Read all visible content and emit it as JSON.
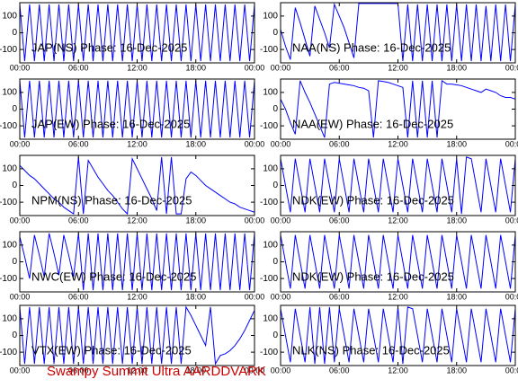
{
  "caption": "Swampy Summit Ultra AARDDVARK",
  "chart_data": [
    {
      "type": "line",
      "title": "JAP(NS) Phase: 16-Dec-2025",
      "color": "#0000ff",
      "xlim": [
        0,
        24
      ],
      "ylim": [
        -180,
        180
      ],
      "xticks": [
        {
          "value": 0,
          "label": "00:00"
        },
        {
          "value": 6,
          "label": "06:00"
        },
        {
          "value": 12,
          "label": "12:00"
        },
        {
          "value": 18,
          "label": "18:00"
        },
        {
          "value": 24,
          "label": "00:00"
        }
      ],
      "yticks": [
        -100,
        0,
        100
      ],
      "x": [
        0,
        0.5,
        1,
        1.5,
        2,
        2.5,
        3,
        3.5,
        4,
        4.5,
        5,
        5.5,
        6,
        6.5,
        7,
        7.5,
        8,
        8.5,
        9,
        9.5,
        10,
        10.5,
        11,
        11.5,
        12,
        12.5,
        13,
        13.5,
        14,
        14.5,
        15,
        15.5,
        16,
        16.5,
        17,
        17.5,
        18,
        18.5,
        19,
        19.5,
        20,
        20.5,
        21,
        21.5,
        22,
        22.5,
        23,
        23.5,
        24
      ],
      "values": [
        170,
        -170,
        170,
        -170,
        170,
        -170,
        170,
        -170,
        170,
        -170,
        170,
        -170,
        170,
        -170,
        170,
        -170,
        170,
        -170,
        170,
        -170,
        170,
        -170,
        170,
        -170,
        170,
        -170,
        170,
        -170,
        170,
        -170,
        170,
        -170,
        170,
        -170,
        170,
        -170,
        170,
        -170,
        170,
        -170,
        170,
        -170,
        170,
        -170,
        170,
        -170,
        170,
        -170,
        170
      ]
    },
    {
      "type": "line",
      "title": "NAA(NS) Phase: 16-Dec-2025",
      "color": "#0000ff",
      "xlim": [
        0,
        24
      ],
      "ylim": [
        -180,
        180
      ],
      "xticks": [
        {
          "value": 0,
          "label": "00:00"
        },
        {
          "value": 6,
          "label": "06:00"
        },
        {
          "value": 12,
          "label": "12:00"
        },
        {
          "value": 18,
          "label": "18:00"
        },
        {
          "value": 24,
          "label": "00:00"
        }
      ],
      "yticks": [
        -100,
        0,
        100
      ],
      "x": [
        0,
        0.5,
        1,
        1.5,
        2,
        2.5,
        3,
        3.5,
        4,
        4.5,
        5,
        5.5,
        6,
        6.5,
        7,
        7.5,
        8,
        8.5,
        9,
        9.5,
        10,
        10.5,
        11,
        11.5,
        12,
        12.5,
        13,
        13.5,
        14,
        14.5,
        15,
        15.5,
        16,
        16.5,
        17,
        17.5,
        18,
        18.5,
        19,
        19.5,
        20,
        20.5,
        21,
        21.5,
        22,
        22.5,
        23,
        23.5,
        24
      ],
      "values": [
        20,
        -80,
        -160,
        150,
        60,
        -40,
        -140,
        160,
        80,
        0,
        -90,
        170,
        100,
        30,
        -60,
        -150,
        175,
        175,
        175,
        175,
        175,
        175,
        175,
        175,
        175,
        -170,
        170,
        -170,
        170,
        -170,
        170,
        -170,
        170,
        -170,
        170,
        -170,
        170,
        -170,
        170,
        -170,
        170,
        -170,
        160,
        -170,
        170,
        -170,
        170,
        -170,
        170
      ]
    },
    {
      "type": "line",
      "title": "JAP(EW) Phase: 16-Dec-2025",
      "color": "#0000ff",
      "xlim": [
        0,
        24
      ],
      "ylim": [
        -180,
        180
      ],
      "xticks": [
        {
          "value": 0,
          "label": "00:00"
        },
        {
          "value": 6,
          "label": "06:00"
        },
        {
          "value": 12,
          "label": "12:00"
        },
        {
          "value": 18,
          "label": "18:00"
        },
        {
          "value": 24,
          "label": "00:00"
        }
      ],
      "yticks": [
        -100,
        0,
        100
      ],
      "x": [
        0,
        0.5,
        1,
        1.5,
        2,
        2.5,
        3,
        3.5,
        4,
        4.5,
        5,
        5.5,
        6,
        6.5,
        7,
        7.5,
        8,
        8.5,
        9,
        9.5,
        10,
        10.5,
        11,
        11.5,
        12,
        12.5,
        13,
        13.5,
        14,
        14.5,
        15,
        15.5,
        16,
        16.5,
        17,
        17.5,
        18,
        18.5,
        19,
        19.5,
        20,
        20.5,
        21,
        21.5,
        22,
        22.5,
        23,
        23.5,
        24
      ],
      "values": [
        170,
        -170,
        170,
        -170,
        170,
        -170,
        170,
        -170,
        170,
        -170,
        170,
        -170,
        170,
        -170,
        170,
        -170,
        170,
        -170,
        170,
        -170,
        170,
        -170,
        170,
        -170,
        170,
        -170,
        170,
        -170,
        170,
        -170,
        170,
        -170,
        170,
        -170,
        170,
        -170,
        170,
        -170,
        170,
        -170,
        170,
        -170,
        170,
        -170,
        170,
        -170,
        170,
        -170,
        170
      ]
    },
    {
      "type": "line",
      "title": "NAA(EW) Phase: 16-Dec-2025",
      "color": "#0000ff",
      "xlim": [
        0,
        24
      ],
      "ylim": [
        -180,
        180
      ],
      "xticks": [
        {
          "value": 0,
          "label": "00:00"
        },
        {
          "value": 6,
          "label": "06:00"
        },
        {
          "value": 12,
          "label": "12:00"
        },
        {
          "value": 18,
          "label": "18:00"
        },
        {
          "value": 24,
          "label": "00:00"
        }
      ],
      "yticks": [
        -100,
        0,
        100
      ],
      "x": [
        0,
        0.5,
        1,
        1.5,
        2,
        2.5,
        3,
        3.5,
        4,
        4.5,
        5,
        5.5,
        6,
        6.5,
        7,
        7.5,
        8,
        8.5,
        9,
        9.5,
        10,
        10.5,
        11,
        11.5,
        12,
        12.5,
        13,
        13.5,
        14,
        14.5,
        15,
        15.5,
        16,
        16.5,
        17,
        17.5,
        18,
        18.5,
        19,
        19.5,
        20,
        20.5,
        21,
        21.5,
        22,
        22.5,
        23,
        23.5,
        24
      ],
      "values": [
        60,
        0,
        -80,
        -150,
        170,
        100,
        40,
        -30,
        -100,
        -170,
        150,
        160,
        155,
        150,
        145,
        140,
        130,
        125,
        110,
        -170,
        170,
        165,
        160,
        150,
        140,
        130,
        -170,
        170,
        -170,
        170,
        -170,
        170,
        -170,
        170,
        150,
        150,
        145,
        140,
        130,
        120,
        110,
        100,
        120,
        110,
        100,
        80,
        70,
        70,
        60
      ]
    },
    {
      "type": "line",
      "title": "NPM(NS) Phase: 16-Dec-2025",
      "color": "#0000ff",
      "xlim": [
        0,
        24
      ],
      "ylim": [
        -180,
        180
      ],
      "xticks": [
        {
          "value": 0,
          "label": "00:00"
        },
        {
          "value": 6,
          "label": "06:00"
        },
        {
          "value": 12,
          "label": "12:00"
        },
        {
          "value": 18,
          "label": "18:00"
        },
        {
          "value": 24,
          "label": "00:00"
        }
      ],
      "yticks": [
        -100,
        0,
        100
      ],
      "x": [
        0,
        0.5,
        1,
        1.5,
        2,
        2.5,
        3,
        3.5,
        4,
        4.5,
        5,
        5.5,
        6,
        6.5,
        7,
        7.5,
        8,
        8.5,
        9,
        9.5,
        10,
        10.5,
        11,
        11.5,
        12,
        12.5,
        13,
        13.5,
        14,
        14.5,
        15,
        15.5,
        16,
        16.5,
        17,
        17.5,
        18,
        18.5,
        19,
        19.5,
        20,
        20.5,
        21,
        21.5,
        22,
        22.5,
        23,
        23.5,
        24
      ],
      "values": [
        120,
        90,
        60,
        40,
        10,
        -20,
        -50,
        -80,
        -100,
        -130,
        -150,
        -170,
        170,
        -170,
        150,
        100,
        50,
        10,
        -30,
        -60,
        -100,
        -140,
        -170,
        160,
        100,
        40,
        -20,
        -80,
        -150,
        170,
        -170,
        170,
        -170,
        -170,
        40,
        80,
        60,
        30,
        0,
        -20,
        -40,
        -60,
        -80,
        -100,
        -110,
        -130,
        -140,
        -150,
        -160
      ]
    },
    {
      "type": "line",
      "title": "NDK(EW) Phase: 16-Dec-2025",
      "color": "#0000ff",
      "xlim": [
        0,
        24
      ],
      "ylim": [
        -180,
        180
      ],
      "xticks": [
        {
          "value": 0,
          "label": "00:00"
        },
        {
          "value": 6,
          "label": "06:00"
        },
        {
          "value": 12,
          "label": "12:00"
        },
        {
          "value": 18,
          "label": "18:00"
        },
        {
          "value": 24,
          "label": "00:00"
        }
      ],
      "yticks": [
        -100,
        0,
        100
      ],
      "x": [
        0,
        0.5,
        1,
        1.5,
        2,
        2.5,
        3,
        3.5,
        4,
        4.5,
        5,
        5.5,
        6,
        6.5,
        7,
        7.5,
        8,
        8.5,
        9,
        9.5,
        10,
        10.5,
        11,
        11.5,
        12,
        12.5,
        13,
        13.5,
        14,
        14.5,
        15,
        15.5,
        16,
        16.5,
        17,
        17.5,
        18,
        18.5,
        19,
        19.5,
        20,
        20.5,
        21,
        21.5,
        22,
        22.5,
        23,
        23.5,
        24
      ],
      "values": [
        160,
        0,
        -160,
        160,
        0,
        -160,
        160,
        0,
        -160,
        160,
        0,
        -160,
        160,
        0,
        -160,
        160,
        0,
        -160,
        160,
        0,
        -160,
        160,
        0,
        -160,
        160,
        0,
        -160,
        160,
        0,
        -160,
        160,
        0,
        -160,
        160,
        0,
        -160,
        160,
        -170,
        170,
        160,
        0,
        -160,
        160,
        0,
        -160,
        160,
        0,
        -160,
        160
      ]
    },
    {
      "type": "line",
      "title": "NWC(EW) Phase: 16-Dec-2025",
      "color": "#0000ff",
      "xlim": [
        0,
        24
      ],
      "ylim": [
        -180,
        180
      ],
      "xticks": [
        {
          "value": 0,
          "label": "00:00"
        },
        {
          "value": 6,
          "label": "06:00"
        },
        {
          "value": 12,
          "label": "12:00"
        },
        {
          "value": 18,
          "label": "18:00"
        },
        {
          "value": 24,
          "label": "00:00"
        }
      ],
      "yticks": [
        -100,
        0,
        100
      ],
      "x": [
        0,
        0.5,
        1,
        1.5,
        2,
        2.5,
        3,
        3.5,
        4,
        4.5,
        5,
        5.5,
        6,
        6.5,
        7,
        7.5,
        8,
        8.5,
        9,
        9.5,
        10,
        10.5,
        11,
        11.5,
        12,
        12.5,
        13,
        13.5,
        14,
        14.5,
        15,
        15.5,
        16,
        16.5,
        17,
        17.5,
        18,
        18.5,
        19,
        19.5,
        20,
        20.5,
        21,
        21.5,
        22,
        22.5,
        23,
        23.5,
        24
      ],
      "values": [
        150,
        30,
        -100,
        160,
        40,
        -90,
        170,
        50,
        -80,
        160,
        40,
        -90,
        170,
        -170,
        170,
        -170,
        170,
        -170,
        170,
        -170,
        170,
        -170,
        170,
        -170,
        170,
        -170,
        170,
        -170,
        170,
        -170,
        170,
        -170,
        170,
        -170,
        170,
        -170,
        170,
        -170,
        170,
        -170,
        170,
        -170,
        170,
        -170,
        170,
        -170,
        170,
        -170,
        170
      ]
    },
    {
      "type": "line",
      "title": "NDK(EW) Phase: 16-Dec-2025",
      "color": "#0000ff",
      "xlim": [
        0,
        24
      ],
      "ylim": [
        -180,
        180
      ],
      "xticks": [
        {
          "value": 0,
          "label": "00:00"
        },
        {
          "value": 6,
          "label": "06:00"
        },
        {
          "value": 12,
          "label": "12:00"
        },
        {
          "value": 18,
          "label": "18:00"
        },
        {
          "value": 24,
          "label": "00:00"
        }
      ],
      "yticks": [
        -100,
        0,
        100
      ],
      "x": [
        0,
        0.5,
        1,
        1.5,
        2,
        2.5,
        3,
        3.5,
        4,
        4.5,
        5,
        5.5,
        6,
        6.5,
        7,
        7.5,
        8,
        8.5,
        9,
        9.5,
        10,
        10.5,
        11,
        11.5,
        12,
        12.5,
        13,
        13.5,
        14,
        14.5,
        15,
        15.5,
        16,
        16.5,
        17,
        17.5,
        18,
        18.5,
        19,
        19.5,
        20,
        20.5,
        21,
        21.5,
        22,
        22.5,
        23,
        23.5,
        24
      ],
      "values": [
        160,
        0,
        -160,
        160,
        0,
        -160,
        160,
        0,
        -160,
        160,
        0,
        -160,
        160,
        0,
        -160,
        160,
        0,
        -160,
        160,
        0,
        -160,
        160,
        0,
        -160,
        160,
        0,
        -160,
        160,
        0,
        -160,
        160,
        0,
        -160,
        160,
        0,
        -160,
        160,
        0,
        -160,
        160,
        0,
        -160,
        160,
        0,
        -160,
        160,
        0,
        -160,
        160
      ]
    },
    {
      "type": "line",
      "title": "VTX(EW) Phase: 16-Dec-2025",
      "color": "#0000ff",
      "xlim": [
        0,
        24
      ],
      "ylim": [
        -180,
        180
      ],
      "xticks": [
        {
          "value": 0,
          "label": "00:00"
        },
        {
          "value": 6,
          "label": "06:00"
        },
        {
          "value": 12,
          "label": "12:00"
        },
        {
          "value": 18,
          "label": "18:00"
        },
        {
          "value": 24,
          "label": "00:00"
        }
      ],
      "yticks": [
        -100,
        0,
        100
      ],
      "x": [
        0,
        0.5,
        1,
        1.5,
        2,
        2.5,
        3,
        3.5,
        4,
        4.5,
        5,
        5.5,
        6,
        6.5,
        7,
        7.5,
        8,
        8.5,
        9,
        9.5,
        10,
        10.5,
        11,
        11.5,
        12,
        12.5,
        13,
        13.5,
        14,
        14.5,
        15,
        15.5,
        16,
        16.5,
        17,
        17.5,
        18,
        18.5,
        19,
        19.5,
        20,
        20.5,
        21,
        21.5,
        22,
        22.5,
        23,
        23.5,
        24
      ],
      "values": [
        170,
        -170,
        170,
        -170,
        170,
        -170,
        170,
        -170,
        170,
        -170,
        170,
        -170,
        170,
        -170,
        170,
        -170,
        170,
        -170,
        170,
        -170,
        170,
        -170,
        170,
        -170,
        170,
        -170,
        170,
        -170,
        170,
        -170,
        170,
        -170,
        170,
        -170,
        170,
        120,
        60,
        0,
        -60,
        170,
        -170,
        -120,
        -110,
        -90,
        -60,
        -20,
        30,
        90,
        150
      ]
    },
    {
      "type": "line",
      "title": "NLK(NS) Phase: 16-Dec-2025",
      "color": "#0000ff",
      "xlim": [
        0,
        24
      ],
      "ylim": [
        -180,
        180
      ],
      "xticks": [
        {
          "value": 0,
          "label": "00:00"
        },
        {
          "value": 6,
          "label": "06:00"
        },
        {
          "value": 12,
          "label": "12:00"
        },
        {
          "value": 18,
          "label": "18:00"
        },
        {
          "value": 24,
          "label": "00:00"
        }
      ],
      "yticks": [
        -100,
        0,
        100
      ],
      "x": [
        0,
        0.5,
        1,
        1.5,
        2,
        2.5,
        3,
        3.5,
        4,
        4.5,
        5,
        5.5,
        6,
        6.5,
        7,
        7.5,
        8,
        8.5,
        9,
        9.5,
        10,
        10.5,
        11,
        11.5,
        12,
        12.5,
        13,
        13.5,
        14,
        14.5,
        15,
        15.5,
        16,
        16.5,
        17,
        17.5,
        18,
        18.5,
        19,
        19.5,
        20,
        20.5,
        21,
        21.5,
        22,
        22.5,
        23,
        23.5,
        24
      ],
      "values": [
        160,
        0,
        -160,
        160,
        0,
        -160,
        170,
        -170,
        170,
        -170,
        170,
        -160,
        160,
        0,
        -160,
        160,
        0,
        -160,
        160,
        0,
        -160,
        160,
        0,
        -160,
        170,
        -170,
        170,
        160,
        0,
        -160,
        160,
        0,
        -160,
        160,
        0,
        -160,
        160,
        0,
        -160,
        160,
        0,
        -160,
        160,
        0,
        -160,
        160,
        0,
        -160,
        160
      ]
    }
  ]
}
